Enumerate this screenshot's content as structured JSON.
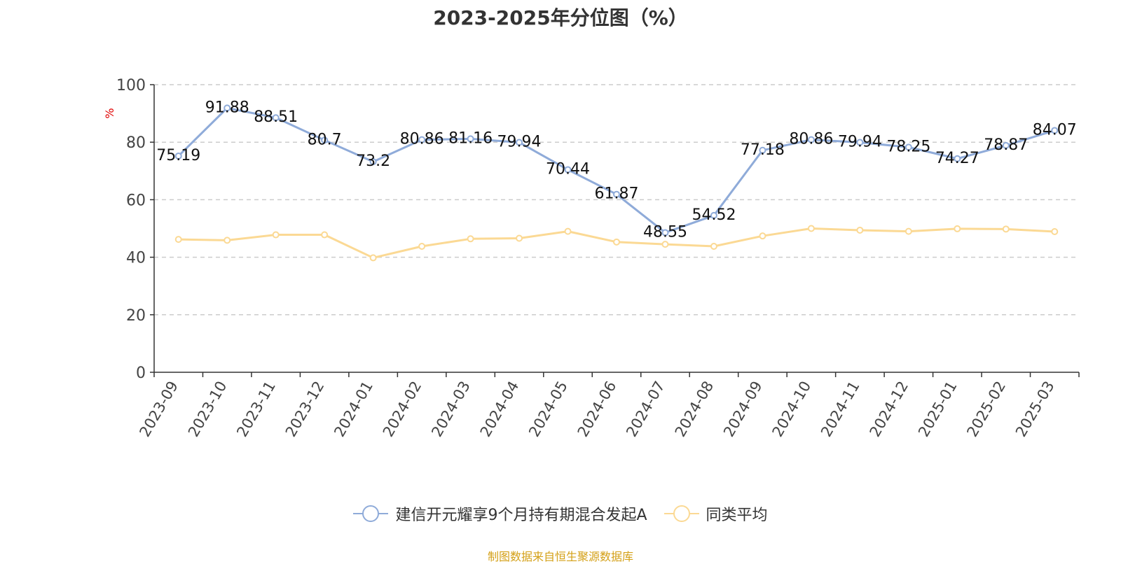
{
  "chart_data": {
    "type": "line",
    "title": "2023-2025年分位图（%）",
    "ylabel": "%",
    "xlabel": "",
    "ylim": [
      0,
      100
    ],
    "yticks": [
      0,
      20,
      40,
      60,
      80,
      100
    ],
    "grid": true,
    "legend_position": "bottom",
    "categories": [
      "2023-09",
      "2023-10",
      "2023-11",
      "2023-12",
      "2024-01",
      "2024-02",
      "2024-03",
      "2024-04",
      "2024-05",
      "2024-06",
      "2024-07",
      "2024-08",
      "2024-09",
      "2024-10",
      "2024-11",
      "2024-12",
      "2025-01",
      "2025-02",
      "2025-03"
    ],
    "series": [
      {
        "name": "建信开元耀享9个月持有期混合发起A",
        "color": "#8fabd9",
        "show_labels": true,
        "values": [
          75.19,
          91.88,
          88.51,
          80.7,
          73.2,
          80.86,
          81.16,
          79.94,
          70.44,
          61.87,
          48.55,
          54.52,
          77.18,
          80.86,
          79.94,
          78.25,
          74.27,
          78.87,
          84.07
        ]
      },
      {
        "name": "同类平均",
        "color": "#fbd994",
        "show_labels": false,
        "values": [
          46.2,
          45.9,
          47.8,
          47.8,
          39.8,
          43.8,
          46.4,
          46.6,
          49.0,
          45.3,
          44.5,
          43.8,
          47.4,
          50.0,
          49.4,
          49.0,
          49.9,
          49.8,
          48.9
        ]
      }
    ]
  },
  "source": "制图数据来自恒生聚源数据库"
}
